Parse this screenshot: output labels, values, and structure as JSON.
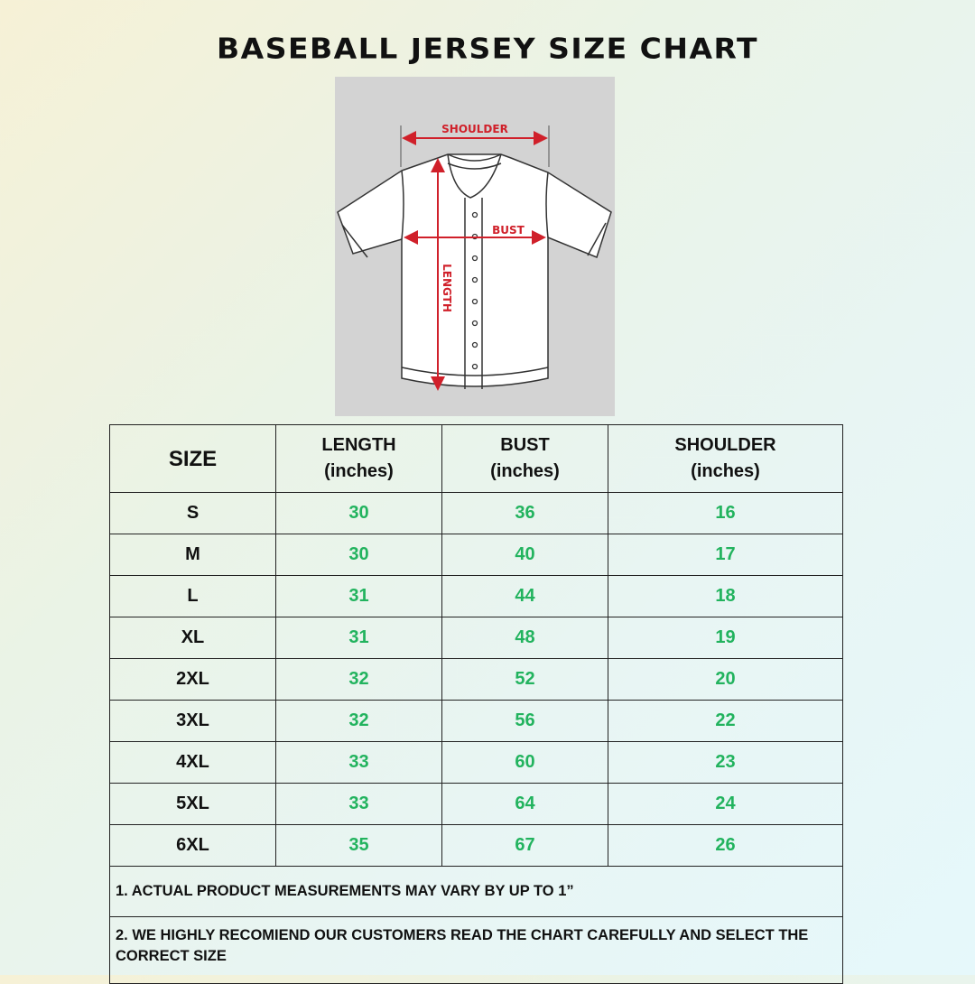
{
  "title": "BASEBALL JERSEY SIZE CHART",
  "diagram": {
    "labels": {
      "shoulder": "SHOULDER",
      "bust": "BUST",
      "length": "LENGTH"
    },
    "measure_color": "#d0202a"
  },
  "table": {
    "headers": [
      {
        "main": "SIZE"
      },
      {
        "main": "LENGTH",
        "unit": "(inches)"
      },
      {
        "main": "BUST",
        "unit": "(inches)"
      },
      {
        "main": "SHOULDER",
        "unit": "(inches)"
      }
    ],
    "rows": [
      {
        "size": "S",
        "length": "30",
        "bust": "36",
        "shoulder": "16"
      },
      {
        "size": "M",
        "length": "30",
        "bust": "40",
        "shoulder": "17"
      },
      {
        "size": "L",
        "length": "31",
        "bust": "44",
        "shoulder": "18"
      },
      {
        "size": "XL",
        "length": "31",
        "bust": "48",
        "shoulder": "19"
      },
      {
        "size": "2XL",
        "length": "32",
        "bust": "52",
        "shoulder": "20"
      },
      {
        "size": "3XL",
        "length": "32",
        "bust": "56",
        "shoulder": "22"
      },
      {
        "size": "4XL",
        "length": "33",
        "bust": "60",
        "shoulder": "23"
      },
      {
        "size": "5XL",
        "length": "33",
        "bust": "64",
        "shoulder": "24"
      },
      {
        "size": "6XL",
        "length": "35",
        "bust": "67",
        "shoulder": "26"
      }
    ],
    "value_color": "#22b35e",
    "notes": [
      "1. ACTUAL PRODUCT MEASUREMENTS MAY VARY BY UP TO 1”",
      "2. WE HIGHLY RECOMIEND OUR CUSTOMERS READ THE CHART CAREFULLY AND SELECT THE CORRECT SIZE"
    ]
  }
}
